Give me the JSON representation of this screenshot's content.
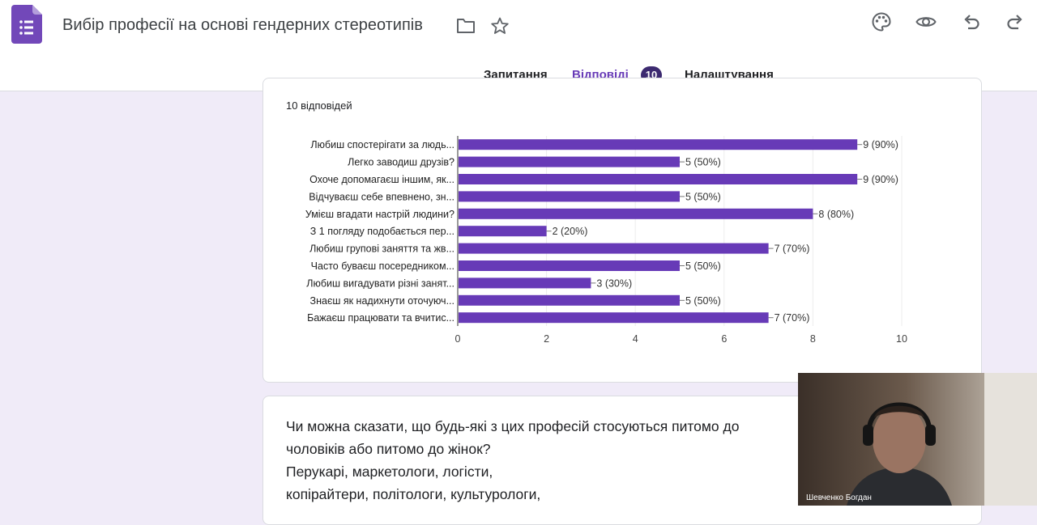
{
  "header": {
    "title": "Вибір професії на основі гендерних стереотипів",
    "icons": [
      "forms-logo",
      "folder-icon",
      "star-icon",
      "palette-icon",
      "eye-icon",
      "undo-icon",
      "redo-icon"
    ]
  },
  "tabs": [
    {
      "label": "Запитання"
    },
    {
      "label": "Відповіді"
    },
    {
      "label": "Налаштування"
    }
  ],
  "responses_badge": "10",
  "chart_card": {
    "response_count": "10 відповідей"
  },
  "chart_data": {
    "type": "bar",
    "orientation": "horizontal",
    "categories": [
      "Любиш спостерігати за людь...",
      "Легко заводиш друзів?",
      "Охоче допомагаєш іншим, як...",
      "Відчуваєш себе впевнено, зн...",
      "Умієш вгадати настрій людини?",
      "З 1 погляду подобається пер...",
      "Любиш групові заняття та жв...",
      "Часто буваєш посередником...",
      "Любиш вигадувати різні занят...",
      "Знаєш як надихнути оточуюч...",
      "Бажаєш працювати та вчитис..."
    ],
    "values": [
      9,
      5,
      9,
      5,
      8,
      2,
      7,
      5,
      3,
      5,
      7
    ],
    "value_labels": [
      "9 (90%)",
      "5 (50%)",
      "9 (90%)",
      "5 (50%)",
      "8 (80%)",
      "2 (20%)",
      "7 (70%)",
      "5 (50%)",
      "3 (30%)",
      "5 (50%)",
      "7 (70%)"
    ],
    "xlim": [
      0,
      10
    ],
    "xticks": [
      "0",
      "2",
      "4",
      "6",
      "8",
      "10"
    ],
    "color": "#673ab7",
    "grid": true
  },
  "question_card": {
    "lines": [
      "Чи можна сказати, що будь-які з цих професій стосуються питомо до",
      "чоловіків або питомо до жінок?",
      "Перукарі, маркетологи, логісти,",
      "копірайтери, політологи,  культурологи,"
    ]
  },
  "video": {
    "participant_name": "Шевченко Богдан"
  },
  "colors": {
    "accent": "#673ab7",
    "background": "#f0ebf8"
  }
}
